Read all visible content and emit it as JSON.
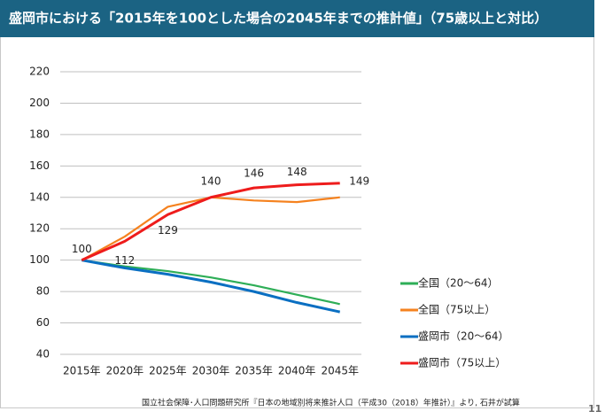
{
  "title": "盛岡市における「2015年を100とした場合の2045年までの推計値」（75歳以上と対比）",
  "chart_data": {
    "type": "line",
    "categories": [
      "2015年",
      "2020年",
      "2025年",
      "2030年",
      "2035年",
      "2040年",
      "2045年"
    ],
    "series": [
      {
        "name": "全国（20～64）",
        "color": "#2eae57",
        "values": [
          100,
          96,
          93,
          89,
          84,
          78,
          72
        ]
      },
      {
        "name": "全国（75以上）",
        "color": "#f5821f",
        "values": [
          100,
          115,
          134,
          140,
          138,
          137,
          140
        ]
      },
      {
        "name": "盛岡市（20～64）",
        "color": "#0a6fc2",
        "values": [
          100,
          95,
          91,
          86,
          80,
          73,
          67
        ]
      },
      {
        "name": "盛岡市（75以上）",
        "color": "#ee1c1c",
        "values": [
          100,
          112,
          129,
          140,
          146,
          148,
          149
        ],
        "data_labels": true
      }
    ],
    "ylim": [
      40,
      220
    ],
    "yticks": [
      40,
      60,
      80,
      100,
      120,
      140,
      160,
      180,
      200,
      220
    ],
    "grid": true,
    "legend": "right"
  },
  "footnote": "国立社会保障･人口問題研究所『日本の地域別将来推計人口（平成30（2018）年推計）』より, 石井が試算",
  "page_number": 11
}
